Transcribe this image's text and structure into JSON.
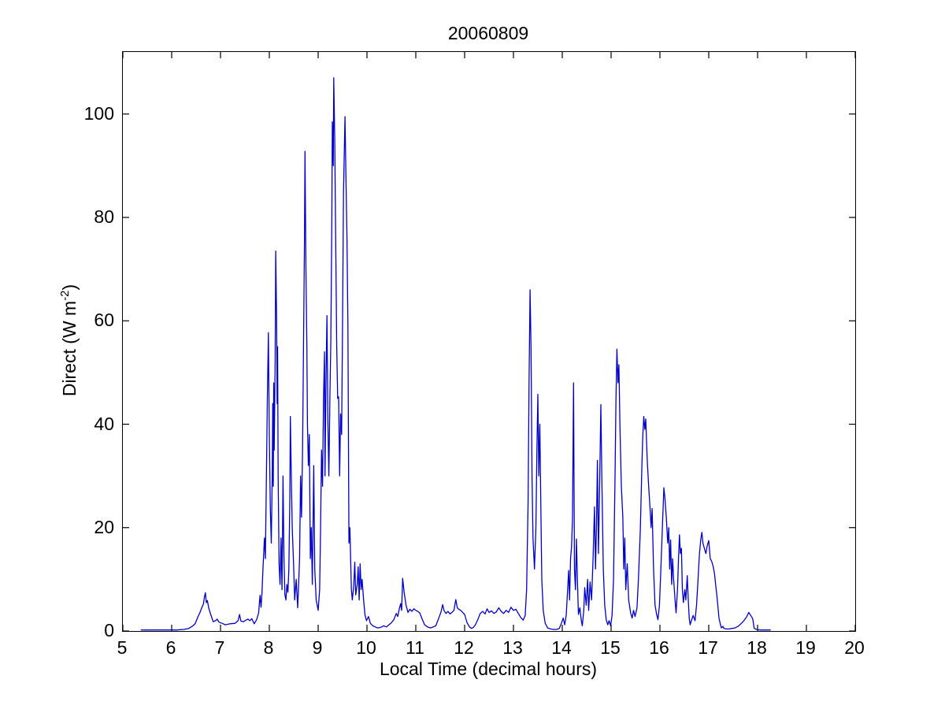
{
  "chart_data": {
    "type": "line",
    "title": "20060809",
    "xlabel": "Local Time (decimal hours)",
    "ylabel": "Direct (W m-2)",
    "ylabel_parts": {
      "prefix": "Direct (W m",
      "sup": "-2",
      "suffix": ")"
    },
    "xlim": [
      5,
      20
    ],
    "ylim": [
      0,
      112
    ],
    "x_ticks": [
      5,
      6,
      7,
      8,
      9,
      10,
      11,
      12,
      13,
      14,
      15,
      16,
      17,
      18,
      19,
      20
    ],
    "y_ticks": [
      0,
      20,
      40,
      60,
      80,
      100
    ],
    "grid": false,
    "legend": null,
    "line_color": "#0000CC",
    "x": [
      5.37,
      5.5,
      5.65,
      5.8,
      5.95,
      6.1,
      6.25,
      6.35,
      6.42,
      6.48,
      6.54,
      6.58,
      6.62,
      6.65,
      6.67,
      6.69,
      6.71,
      6.73,
      6.76,
      6.8,
      6.85,
      6.9,
      6.93,
      6.97,
      7.03,
      7.1,
      7.2,
      7.3,
      7.36,
      7.39,
      7.42,
      7.47,
      7.52,
      7.56,
      7.6,
      7.64,
      7.69,
      7.74,
      7.78,
      7.81,
      7.83,
      7.85,
      7.87,
      7.9,
      7.92,
      7.94,
      7.96,
      7.98,
      8.0,
      8.02,
      8.04,
      8.06,
      8.07,
      8.08,
      8.09,
      8.1,
      8.12,
      8.13,
      8.15,
      8.16,
      8.17,
      8.18,
      8.2,
      8.22,
      8.24,
      8.26,
      8.28,
      8.3,
      8.32,
      8.34,
      8.36,
      8.38,
      8.4,
      8.42,
      8.43,
      8.45,
      8.47,
      8.5,
      8.52,
      8.55,
      8.58,
      8.6,
      8.62,
      8.64,
      8.66,
      8.68,
      8.7,
      8.72,
      8.73,
      8.75,
      8.77,
      8.78,
      8.8,
      8.82,
      8.84,
      8.86,
      8.88,
      8.91,
      8.93,
      8.96,
      9.0,
      9.03,
      9.05,
      9.07,
      9.09,
      9.11,
      9.13,
      9.14,
      9.16,
      9.18,
      9.2,
      9.22,
      9.24,
      9.26,
      9.28,
      9.29,
      9.31,
      9.32,
      9.34,
      9.36,
      9.38,
      9.4,
      9.42,
      9.44,
      9.46,
      9.48,
      9.5,
      9.52,
      9.55,
      9.57,
      9.59,
      9.61,
      9.63,
      9.65,
      9.68,
      9.7,
      9.73,
      9.75,
      9.77,
      9.8,
      9.82,
      9.84,
      9.86,
      9.88,
      9.9,
      9.93,
      9.96,
      9.99,
      10.03,
      10.07,
      10.12,
      10.17,
      10.22,
      10.28,
      10.34,
      10.4,
      10.45,
      10.5,
      10.55,
      10.6,
      10.63,
      10.66,
      10.69,
      10.71,
      10.73,
      10.76,
      10.8,
      10.84,
      10.88,
      10.92,
      10.96,
      11.0,
      11.04,
      11.08,
      11.13,
      11.18,
      11.24,
      11.3,
      11.36,
      11.41,
      11.45,
      11.49,
      11.52,
      11.55,
      11.58,
      11.62,
      11.66,
      11.7,
      11.74,
      11.78,
      11.82,
      11.85,
      11.88,
      11.92,
      11.96,
      12.0,
      12.05,
      12.1,
      12.14,
      12.18,
      12.22,
      12.27,
      12.32,
      12.37,
      12.42,
      12.46,
      12.5,
      12.55,
      12.6,
      12.65,
      12.7,
      12.75,
      12.8,
      12.85,
      12.9,
      12.95,
      13.0,
      13.05,
      13.1,
      13.15,
      13.2,
      13.24,
      13.27,
      13.3,
      13.32,
      13.34,
      13.36,
      13.38,
      13.4,
      13.43,
      13.46,
      13.48,
      13.5,
      13.52,
      13.54,
      13.56,
      13.58,
      13.61,
      13.65,
      13.7,
      13.76,
      13.82,
      13.88,
      13.94,
      13.98,
      14.02,
      14.05,
      14.08,
      14.11,
      14.13,
      14.15,
      14.17,
      14.19,
      14.21,
      14.23,
      14.25,
      14.27,
      14.29,
      14.31,
      14.33,
      14.36,
      14.39,
      14.41,
      14.44,
      14.46,
      14.49,
      14.52,
      14.54,
      14.57,
      14.6,
      14.63,
      14.66,
      14.68,
      14.7,
      14.72,
      14.74,
      14.76,
      14.79,
      14.81,
      14.84,
      14.87,
      14.9,
      14.93,
      14.96,
      14.99,
      15.02,
      15.05,
      15.08,
      15.1,
      15.12,
      15.14,
      15.16,
      15.18,
      15.21,
      15.24,
      15.26,
      15.28,
      15.3,
      15.33,
      15.36,
      15.4,
      15.43,
      15.46,
      15.49,
      15.53,
      15.56,
      15.6,
      15.63,
      15.65,
      15.67,
      15.69,
      15.71,
      15.74,
      15.77,
      15.8,
      15.82,
      15.84,
      15.87,
      15.9,
      15.93,
      15.96,
      15.99,
      16.02,
      16.05,
      16.08,
      16.1,
      16.13,
      16.16,
      16.18,
      16.2,
      16.22,
      16.24,
      16.26,
      16.28,
      16.31,
      16.33,
      16.36,
      16.38,
      16.4,
      16.42,
      16.44,
      16.46,
      16.48,
      16.51,
      16.53,
      16.56,
      16.58,
      16.6,
      16.62,
      16.65,
      16.68,
      16.72,
      16.75,
      16.78,
      16.81,
      16.84,
      16.86,
      16.88,
      16.91,
      16.94,
      16.97,
      17.0,
      17.03,
      17.06,
      17.09,
      17.12,
      17.14,
      17.16,
      17.19,
      17.21,
      17.24,
      17.26,
      17.29,
      17.31,
      17.36,
      17.42,
      17.48,
      17.54,
      17.6,
      17.66,
      17.72,
      17.78,
      17.82,
      17.86,
      17.9,
      17.93,
      17.98,
      18.04,
      18.1,
      18.16,
      18.22,
      18.27
    ],
    "y": [
      0.2,
      0.2,
      0.2,
      0.2,
      0.2,
      0.2,
      0.3,
      0.5,
      0.9,
      1.4,
      2.8,
      3.6,
      4.6,
      5.2,
      6.5,
      7.4,
      5.5,
      5.9,
      4.4,
      3.2,
      1.8,
      2.0,
      2.3,
      1.7,
      1.5,
      1.2,
      1.4,
      1.5,
      2.0,
      3.2,
      1.9,
      1.8,
      2.1,
      2.3,
      2.0,
      2.4,
      1.4,
      2.2,
      3.5,
      6.9,
      4.6,
      7.5,
      12,
      18,
      14,
      30,
      45,
      57.7,
      38,
      24,
      17,
      30,
      44,
      28,
      48,
      35,
      52,
      73.5,
      60,
      44,
      55,
      30,
      13,
      9,
      18,
      8,
      30,
      14,
      7,
      6,
      9,
      7.5,
      12,
      25,
      41.5,
      30,
      20,
      12,
      6,
      10,
      4.5,
      9,
      14,
      30,
      22,
      35,
      55,
      75,
      92.8,
      70,
      55,
      40,
      32,
      38,
      14,
      20,
      9,
      32,
      12,
      6,
      4,
      8,
      20,
      35,
      28,
      45,
      54,
      30,
      48,
      61,
      40,
      30,
      45,
      56,
      80,
      98.5,
      90,
      107,
      95,
      75,
      55,
      45,
      45.3,
      30,
      42,
      38,
      60,
      85,
      99.5,
      88,
      76,
      59,
      17,
      20,
      8,
      6,
      9,
      13.3,
      7,
      9,
      12.4,
      6,
      13,
      8,
      10,
      6,
      3.1,
      2,
      2.8,
      1.5,
      1.0,
      0.8,
      0.6,
      0.7,
      1.0,
      0.8,
      1.2,
      1.6,
      2.2,
      3.4,
      2.8,
      4.2,
      5.3,
      4.0,
      10.2,
      7.6,
      5.0,
      3.6,
      4.2,
      3.8,
      4.3,
      4.0,
      3.8,
      3.5,
      2.3,
      1.2,
      0.8,
      0.6,
      0.8,
      1.0,
      2.0,
      3.0,
      3.8,
      5.1,
      3.9,
      3.4,
      3.8,
      3.3,
      3.6,
      4.0,
      6.1,
      4.5,
      4.2,
      4.0,
      3.6,
      3.2,
      1.6,
      0.8,
      0.5,
      0.7,
      1.2,
      2.2,
      3.4,
      3.8,
      3.3,
      4.3,
      3.6,
      3.9,
      3.4,
      3.7,
      4.5,
      3.8,
      3.4,
      4.0,
      3.6,
      4.6,
      4.0,
      4.2,
      3.4,
      2.6,
      2.1,
      3.0,
      8,
      25,
      48,
      66,
      55,
      30,
      18,
      12,
      20,
      35,
      45.8,
      30,
      40,
      25,
      10,
      4,
      1.5,
      0.6,
      0.4,
      0.3,
      0.3,
      0.5,
      1.5,
      2.5,
      1.2,
      3,
      8,
      11.7,
      6,
      14,
      16.3,
      22,
      48,
      12,
      8,
      17.8,
      10,
      3.2,
      4.5,
      2.0,
      1.0,
      4,
      8.4,
      5,
      10,
      4,
      9.5,
      6,
      14,
      24,
      12,
      20,
      33,
      15,
      25,
      43.8,
      30,
      12,
      5,
      2.2,
      1.2,
      2.0,
      1.0,
      3,
      10,
      30,
      45,
      54.5,
      48,
      51.5,
      40,
      28,
      22,
      12,
      18,
      8,
      13,
      6,
      3.5,
      2.5,
      4,
      2.8,
      4.5,
      10,
      20,
      32,
      38,
      41.5,
      39,
      41,
      33,
      28,
      23.4,
      20,
      23.7,
      12,
      5,
      3.3,
      2.2,
      5,
      12,
      20,
      27.7,
      26,
      22,
      17,
      20,
      12,
      17.6,
      9,
      14,
      10,
      6,
      3.5,
      8,
      14,
      18.6,
      15,
      16,
      8,
      5.5,
      8,
      6,
      10.7,
      6,
      2.5,
      1.2,
      2.2,
      3,
      2.0,
      5,
      10,
      15,
      18,
      19.1,
      17,
      16,
      15,
      16.5,
      17.5,
      14,
      13.5,
      12.5,
      11,
      9,
      7.5,
      4.5,
      2.5,
      1.2,
      0.6,
      0.9,
      0.5,
      0.4,
      0.4,
      0.5,
      0.6,
      0.9,
      1.4,
      2.0,
      2.8,
      3.6,
      3.0,
      2.4,
      0.5,
      0.3,
      0.2,
      0.2,
      0.2,
      0.2,
      0.2
    ]
  }
}
